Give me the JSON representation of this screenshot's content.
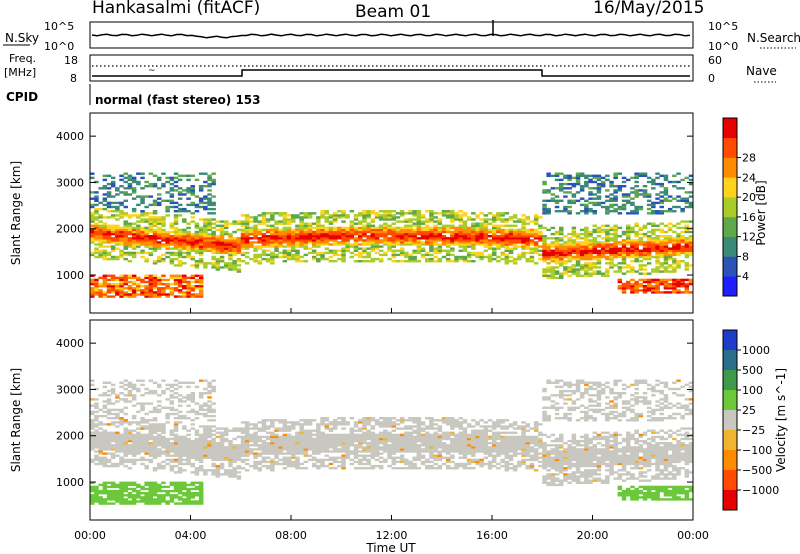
{
  "header": {
    "station": "Hankasalmi (fitACF)",
    "beam": "Beam 01",
    "date": "16/May/2015"
  },
  "noise_panel": {
    "left_label": "N.Sky",
    "right_label": "N.Search",
    "left_ticks": [
      "10^5",
      "10^0"
    ],
    "right_ticks": [
      "10^5",
      "10^0"
    ]
  },
  "freq_panel": {
    "left_label_line1": "Freq.",
    "left_label_line2": "[MHz]",
    "right_label": "Nave",
    "left_ticks": [
      "18",
      "8"
    ],
    "right_ticks": [
      "60",
      "0"
    ]
  },
  "cpid": {
    "label": "CPID",
    "value": "normal (fast stereo) 153"
  },
  "chart_data": [
    {
      "type": "heatmap",
      "name_hint": "power-panel",
      "ylabel": "Slant Range [km]",
      "xlabel": "",
      "ylim": [
        180,
        4500
      ],
      "xlim_hours": [
        0,
        24
      ],
      "yticks": [
        "1000",
        "2000",
        "3000",
        "4000"
      ],
      "colorbar": {
        "label": "Power [dB]",
        "ticks": [
          "4",
          "8",
          "12",
          "16",
          "20",
          "24",
          "28"
        ],
        "colors": [
          "#1e1eff",
          "#2a52b8",
          "#3b8a78",
          "#5fa84a",
          "#a8cc2a",
          "#ffd21e",
          "#ff8c00",
          "#ff4a00",
          "#e60000"
        ]
      },
      "description_bands_km": [
        {
          "from_h": 0,
          "to_h": 6,
          "center": 1600,
          "note": "main echo band"
        },
        {
          "from_h": 6,
          "to_h": 18,
          "center": 1750,
          "note": "main echo band"
        },
        {
          "from_h": 18,
          "to_h": 24,
          "center": 1550,
          "note": "main echo band"
        }
      ]
    },
    {
      "type": "heatmap",
      "name_hint": "velocity-panel",
      "ylabel": "Slant Range [km]",
      "xlabel": "Time UT",
      "ylim": [
        180,
        4500
      ],
      "xlim_hours": [
        0,
        24
      ],
      "yticks": [
        "1000",
        "2000",
        "3000",
        "4000"
      ],
      "xticks": [
        "00:00",
        "04:00",
        "08:00",
        "12:00",
        "16:00",
        "20:00",
        "00:00"
      ],
      "colorbar": {
        "label": "Velocity [m s^-1]",
        "ticks": [
          "1000",
          "500",
          "100",
          "25",
          "−25",
          "−100",
          "−500",
          "−1000"
        ],
        "colors": [
          "#1e3cc8",
          "#2a6e8a",
          "#3d9a4a",
          "#6cc83a",
          "#c8c8c0",
          "#f0b430",
          "#ff8c00",
          "#ff4a00",
          "#e60000"
        ]
      }
    }
  ]
}
